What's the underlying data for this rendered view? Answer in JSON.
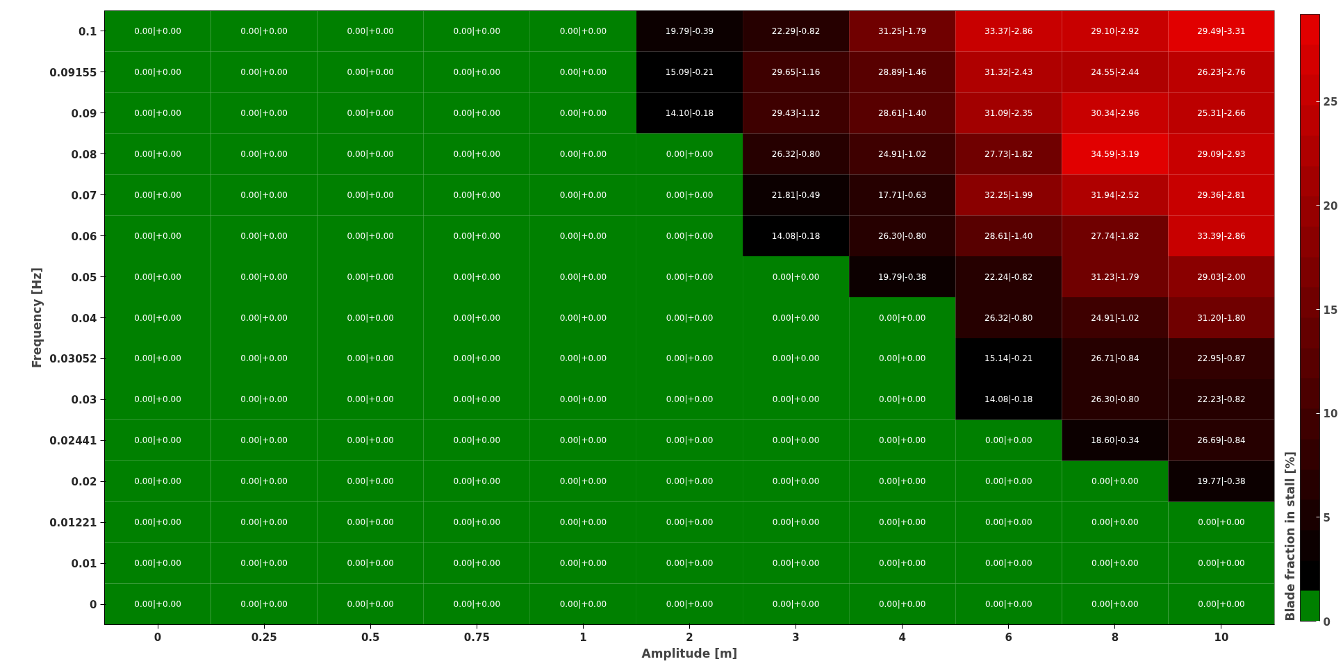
{
  "chart_data": {
    "type": "heatmap",
    "xlabel": "Amplitude [m]",
    "ylabel": "Frequency [Hz]",
    "clabel": "Blade fraction in stall [%]",
    "categories": [
      "0",
      "0.25",
      "0.5",
      "0.75",
      "1",
      "2",
      "3",
      "4",
      "6",
      "8",
      "10"
    ],
    "y_categories": [
      "0.1",
      "0.09155",
      "0.09",
      "0.08",
      "0.07",
      "0.06",
      "0.05",
      "0.04",
      "0.03052",
      "0.03",
      "0.02441",
      "0.02",
      "0.01221",
      "0.01",
      "0"
    ],
    "clim": [
      0,
      29.2
    ],
    "cticks": [
      0,
      5,
      10,
      15,
      20,
      25
    ],
    "cells": [
      [
        0,
        0,
        0,
        0,
        0,
        3,
        7,
        16,
        25,
        26,
        29
      ],
      [
        0,
        0,
        0,
        0,
        0,
        2,
        10,
        13,
        22,
        22,
        24
      ],
      [
        0,
        0,
        0,
        0,
        0,
        2,
        10,
        12,
        21,
        26,
        24
      ],
      [
        0,
        0,
        0,
        0,
        0,
        0,
        7,
        9,
        16,
        28,
        26
      ],
      [
        0,
        0,
        0,
        0,
        0,
        0,
        4,
        6,
        18,
        22,
        25
      ],
      [
        0,
        0,
        0,
        0,
        0,
        0,
        2,
        7,
        12,
        16,
        25
      ],
      [
        0,
        0,
        0,
        0,
        0,
        0,
        0,
        3,
        7,
        16,
        18
      ],
      [
        0,
        0,
        0,
        0,
        0,
        0,
        0,
        0,
        7,
        9,
        16
      ],
      [
        0,
        0,
        0,
        0,
        0,
        0,
        0,
        0,
        2,
        7,
        8
      ],
      [
        0,
        0,
        0,
        0,
        0,
        0,
        0,
        0,
        2,
        7,
        7
      ],
      [
        0,
        0,
        0,
        0,
        0,
        0,
        0,
        0,
        0,
        3,
        7
      ],
      [
        0,
        0,
        0,
        0,
        0,
        0,
        0,
        0,
        0,
        0,
        3
      ],
      [
        0,
        0,
        0,
        0,
        0,
        0,
        0,
        0,
        0,
        0,
        0
      ],
      [
        0,
        0,
        0,
        0,
        0,
        0,
        0,
        0,
        0,
        0,
        0
      ],
      [
        0,
        0,
        0,
        0,
        0,
        0,
        0,
        0,
        0,
        0,
        0
      ]
    ],
    "cell_labels": [
      [
        "0.00|+0.00",
        "0.00|+0.00",
        "0.00|+0.00",
        "0.00|+0.00",
        "0.00|+0.00",
        "19.79|-0.39",
        "22.29|-0.82",
        "31.25|-1.79",
        "33.37|-2.86",
        "29.10|-2.92",
        "29.49|-3.31"
      ],
      [
        "0.00|+0.00",
        "0.00|+0.00",
        "0.00|+0.00",
        "0.00|+0.00",
        "0.00|+0.00",
        "15.09|-0.21",
        "29.65|-1.16",
        "28.89|-1.46",
        "31.32|-2.43",
        "24.55|-2.44",
        "26.23|-2.76"
      ],
      [
        "0.00|+0.00",
        "0.00|+0.00",
        "0.00|+0.00",
        "0.00|+0.00",
        "0.00|+0.00",
        "14.10|-0.18",
        "29.43|-1.12",
        "28.61|-1.40",
        "31.09|-2.35",
        "30.34|-2.96",
        "25.31|-2.66"
      ],
      [
        "0.00|+0.00",
        "0.00|+0.00",
        "0.00|+0.00",
        "0.00|+0.00",
        "0.00|+0.00",
        "0.00|+0.00",
        "26.32|-0.80",
        "24.91|-1.02",
        "27.73|-1.82",
        "34.59|-3.19",
        "29.09|-2.93"
      ],
      [
        "0.00|+0.00",
        "0.00|+0.00",
        "0.00|+0.00",
        "0.00|+0.00",
        "0.00|+0.00",
        "0.00|+0.00",
        "21.81|-0.49",
        "17.71|-0.63",
        "32.25|-1.99",
        "31.94|-2.52",
        "29.36|-2.81"
      ],
      [
        "0.00|+0.00",
        "0.00|+0.00",
        "0.00|+0.00",
        "0.00|+0.00",
        "0.00|+0.00",
        "0.00|+0.00",
        "14.08|-0.18",
        "26.30|-0.80",
        "28.61|-1.40",
        "27.74|-1.82",
        "33.39|-2.86"
      ],
      [
        "0.00|+0.00",
        "0.00|+0.00",
        "0.00|+0.00",
        "0.00|+0.00",
        "0.00|+0.00",
        "0.00|+0.00",
        "0.00|+0.00",
        "19.79|-0.38",
        "22.24|-0.82",
        "31.23|-1.79",
        "29.03|-2.00"
      ],
      [
        "0.00|+0.00",
        "0.00|+0.00",
        "0.00|+0.00",
        "0.00|+0.00",
        "0.00|+0.00",
        "0.00|+0.00",
        "0.00|+0.00",
        "0.00|+0.00",
        "26.32|-0.80",
        "24.91|-1.02",
        "31.20|-1.80"
      ],
      [
        "0.00|+0.00",
        "0.00|+0.00",
        "0.00|+0.00",
        "0.00|+0.00",
        "0.00|+0.00",
        "0.00|+0.00",
        "0.00|+0.00",
        "0.00|+0.00",
        "15.14|-0.21",
        "26.71|-0.84",
        "22.95|-0.87"
      ],
      [
        "0.00|+0.00",
        "0.00|+0.00",
        "0.00|+0.00",
        "0.00|+0.00",
        "0.00|+0.00",
        "0.00|+0.00",
        "0.00|+0.00",
        "0.00|+0.00",
        "14.08|-0.18",
        "26.30|-0.80",
        "22.23|-0.82"
      ],
      [
        "0.00|+0.00",
        "0.00|+0.00",
        "0.00|+0.00",
        "0.00|+0.00",
        "0.00|+0.00",
        "0.00|+0.00",
        "0.00|+0.00",
        "0.00|+0.00",
        "0.00|+0.00",
        "18.60|-0.34",
        "26.69|-0.84"
      ],
      [
        "0.00|+0.00",
        "0.00|+0.00",
        "0.00|+0.00",
        "0.00|+0.00",
        "0.00|+0.00",
        "0.00|+0.00",
        "0.00|+0.00",
        "0.00|+0.00",
        "0.00|+0.00",
        "0.00|+0.00",
        "19.77|-0.38"
      ],
      [
        "0.00|+0.00",
        "0.00|+0.00",
        "0.00|+0.00",
        "0.00|+0.00",
        "0.00|+0.00",
        "0.00|+0.00",
        "0.00|+0.00",
        "0.00|+0.00",
        "0.00|+0.00",
        "0.00|+0.00",
        "0.00|+0.00"
      ],
      [
        "0.00|+0.00",
        "0.00|+0.00",
        "0.00|+0.00",
        "0.00|+0.00",
        "0.00|+0.00",
        "0.00|+0.00",
        "0.00|+0.00",
        "0.00|+0.00",
        "0.00|+0.00",
        "0.00|+0.00",
        "0.00|+0.00"
      ],
      [
        "0.00|+0.00",
        "0.00|+0.00",
        "0.00|+0.00",
        "0.00|+0.00",
        "0.00|+0.00",
        "0.00|+0.00",
        "0.00|+0.00",
        "0.00|+0.00",
        "0.00|+0.00",
        "0.00|+0.00",
        "0.00|+0.00"
      ]
    ]
  }
}
